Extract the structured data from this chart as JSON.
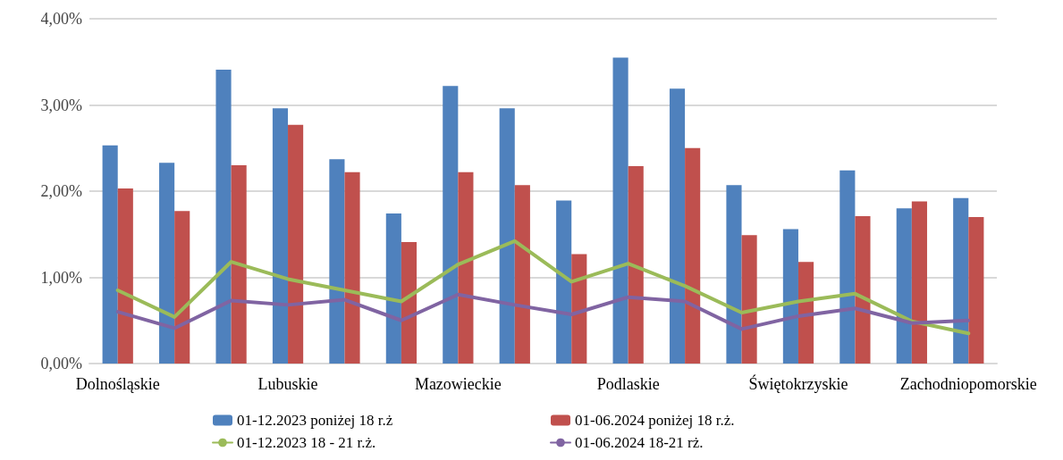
{
  "chart_data": {
    "type": "bar",
    "categories": [
      "Dolnośląskie",
      null,
      null,
      "Lubuskie",
      null,
      null,
      "Mazowieckie",
      null,
      null,
      "Podlaskie",
      null,
      null,
      "Świętokrzyskie",
      null,
      null,
      "Zachodniopomorskie"
    ],
    "series": [
      {
        "name": "01-12.2023 poniżej 18 r.ż",
        "color": "#4f81bd",
        "values": [
          2.53,
          2.33,
          3.41,
          2.96,
          2.37,
          1.74,
          3.22,
          2.96,
          1.89,
          3.55,
          3.19,
          2.07,
          1.56,
          2.24,
          1.8,
          1.92
        ]
      },
      {
        "name": "01-06.2024 poniżej 18 r.ż.",
        "color": "#c0504d",
        "values": [
          2.03,
          1.77,
          2.3,
          2.77,
          2.22,
          1.41,
          2.22,
          2.07,
          1.27,
          2.29,
          2.5,
          1.49,
          1.18,
          1.71,
          1.88,
          1.7
        ]
      },
      {
        "name": "01-12.2023 18 - 21 r.ż.",
        "type": "line",
        "color": "#9bbb59",
        "values": [
          0.85,
          0.54,
          1.18,
          0.98,
          0.85,
          0.72,
          1.15,
          1.42,
          0.95,
          1.16,
          0.9,
          0.59,
          0.72,
          0.81,
          0.49,
          0.35
        ]
      },
      {
        "name": "01-06.2024 18-21 rż.",
        "type": "line",
        "color": "#8064a2",
        "values": [
          0.6,
          0.41,
          0.73,
          0.68,
          0.74,
          0.5,
          0.8,
          0.68,
          0.57,
          0.77,
          0.72,
          0.4,
          0.55,
          0.64,
          0.47,
          0.5
        ]
      }
    ],
    "ylim": [
      0,
      4
    ],
    "yticks": [
      {
        "value": 0,
        "label": "0,00%"
      },
      {
        "value": 1,
        "label": "1,00%"
      },
      {
        "value": 2,
        "label": "2,00%"
      },
      {
        "value": 3,
        "label": "3,00%"
      },
      {
        "value": 4,
        "label": "4,00%"
      }
    ],
    "grid": "y",
    "legend": "bottom",
    "marker": "none",
    "line_style": "solid"
  }
}
